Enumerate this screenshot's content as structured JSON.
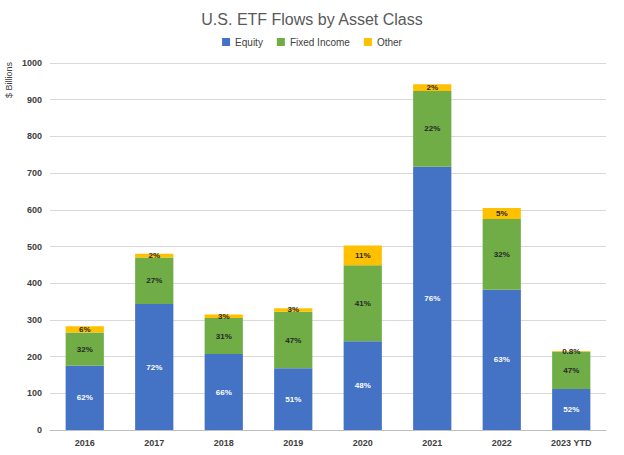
{
  "chart_data": {
    "type": "bar",
    "title": "U.S. ETF Flows by Asset Class",
    "ylabel": "$ Billions",
    "categories": [
      "2016",
      "2017",
      "2018",
      "2019",
      "2020",
      "2021",
      "2022",
      "2023 YTD"
    ],
    "series": [
      {
        "name": "Equity",
        "color": "#4472c4",
        "values": [
          175,
          343,
          207,
          168,
          242,
          717,
          382,
          112
        ],
        "percent_labels": [
          "62%",
          "72%",
          "66%",
          "51%",
          "48%",
          "76%",
          "63%",
          "52%"
        ]
      },
      {
        "name": "Fixed Income",
        "color": "#70ad47",
        "values": [
          91,
          127,
          98,
          154,
          207,
          207,
          193,
          101
        ],
        "percent_labels": [
          "32%",
          "27%",
          "31%",
          "47%",
          "41%",
          "22%",
          "32%",
          "47%"
        ]
      },
      {
        "name": "Other",
        "color": "#ffc000",
        "values": [
          17,
          10,
          10,
          10,
          54,
          18,
          30,
          2
        ],
        "percent_labels": [
          "6%",
          "2%",
          "3%",
          "3%",
          "11%",
          "2%",
          "5%",
          "0.8%"
        ]
      }
    ],
    "ylim": [
      0,
      1000
    ],
    "yticks": [
      0,
      100,
      200,
      300,
      400,
      500,
      600,
      700,
      800,
      900,
      1000
    ],
    "stacked": true,
    "grid": true,
    "legend": "top"
  }
}
